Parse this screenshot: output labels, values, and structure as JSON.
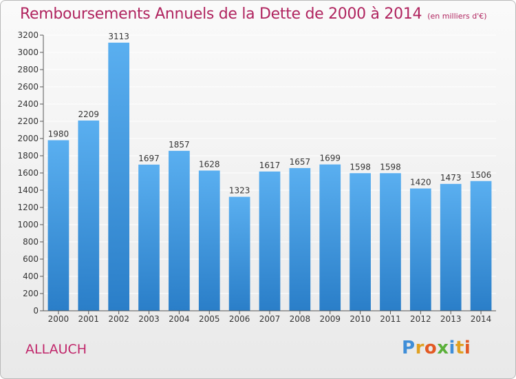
{
  "header": {
    "title": "Remboursements Annuels de la Dette de 2000 à 2014",
    "subtitle": "(en milliers d'€)"
  },
  "footer": {
    "city": "ALLAUCH",
    "logo_text": "Proxiti"
  },
  "colors": {
    "title": "#b0245f",
    "bar_top": "#5aaff0",
    "bar_bottom": "#2a7ec8",
    "grid": "#ffffff"
  },
  "chart_data": {
    "type": "bar",
    "title": "Remboursements Annuels de la Dette de 2000 à 2014",
    "xlabel": "",
    "ylabel": "",
    "categories": [
      "2000",
      "2001",
      "2002",
      "2003",
      "2004",
      "2005",
      "2006",
      "2007",
      "2008",
      "2009",
      "2010",
      "2011",
      "2012",
      "2013",
      "2014"
    ],
    "values": [
      1980,
      2209,
      3113,
      1697,
      1857,
      1628,
      1323,
      1617,
      1657,
      1699,
      1598,
      1598,
      1420,
      1473,
      1506
    ],
    "ylim": [
      0,
      3200
    ],
    "yticks": [
      0,
      200,
      400,
      600,
      800,
      1000,
      1200,
      1400,
      1600,
      1800,
      2000,
      2200,
      2400,
      2600,
      2800,
      3000,
      3200
    ],
    "grid": true,
    "data_labels": true
  }
}
